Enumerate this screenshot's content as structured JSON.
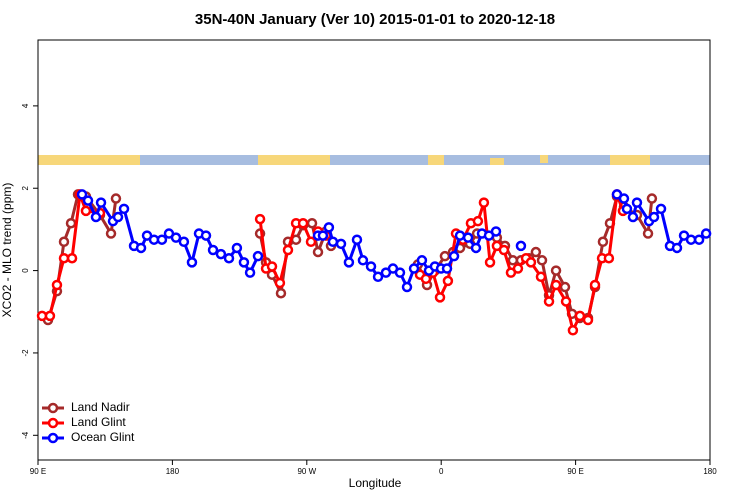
{
  "chart_data": {
    "type": "line",
    "title": "35N-40N January (Ver 10)   2015-01-01 to 2020-12-18",
    "x_label": "Longitude",
    "y_label": "XCO2 - MLO trend (ppm)",
    "xlim": [
      90,
      540
    ],
    "xticks": [
      {
        "value": 90,
        "label": "90 E"
      },
      180,
      {
        "value": 270,
        "label": "90 W"
      },
      {
        "value": 360,
        "label": "0"
      },
      {
        "value": 450,
        "label": "90 E"
      },
      {
        "value": 540,
        "label": "180"
      }
    ],
    "ylim": [
      -4.6,
      5.6
    ],
    "yticks": [
      -4,
      -2,
      0,
      2,
      4
    ],
    "legend": "bottom-left",
    "series": [
      {
        "name": "Land Nadir",
        "color": "#a52a2a",
        "x": [
          96.7,
          102.7,
          107.4,
          112.1,
          116.8,
          122.1,
          131.5,
          138.9,
          142.2,
          null,
          238.7,
          242.7,
          246.7,
          252.7,
          257.4,
          262.8,
          267.5,
          273.5,
          277.5,
          282.8,
          286.2,
          null,
          344.4,
          350.5,
          355.8,
          362.5,
          367.9,
          372.6,
          379.3,
          384,
          397.3,
          402.7,
          408,
          413.4,
          418.8,
          423.4,
          427.5,
          432.2,
          436.9,
          442.9,
          447.6,
          452.9,
          458.3,
          463,
          468.3,
          473,
          477.7,
          482.4,
          491.1,
          498.5,
          501.1
        ],
        "values": [
          -1.2,
          -0.5,
          0.7,
          1.15,
          1.85,
          1.8,
          1.35,
          0.9,
          1.75,
          null,
          0.9,
          0.2,
          -0.1,
          -0.55,
          0.7,
          0.75,
          1.1,
          1.15,
          0.45,
          0.95,
          0.6,
          null,
          0.15,
          -0.35,
          0.0,
          0.35,
          0.45,
          0.55,
          0.65,
          0.9,
          0.8,
          0.6,
          0.25,
          0.25,
          0.3,
          0.45,
          0.25,
          -0.6,
          0.0,
          -0.4,
          -1.05,
          -1.15,
          -1.15,
          -0.4,
          0.7,
          1.15,
          1.8,
          1.55,
          1.35,
          0.9,
          1.75
        ]
      },
      {
        "name": "Land Glint",
        "color": "#ff0000",
        "x": [
          92.7,
          98,
          102.7,
          107.4,
          112.8,
          118.1,
          122.1,
          131.5,
          null,
          238.7,
          242.7,
          246.7,
          252,
          257.4,
          262.8,
          267.5,
          272.8,
          277.5,
          282.8,
          null,
          345.8,
          349.8,
          354.5,
          359.2,
          364.5,
          369.9,
          374.6,
          379.9,
          384.6,
          388.6,
          392.7,
          397.3,
          402,
          406.7,
          411.4,
          416.8,
          420.1,
          426.8,
          432.2,
          436.9,
          443.6,
          448.2,
          452.9,
          458.3,
          463,
          467.7,
          472.3,
          477.7,
          481.7
        ],
        "values": [
          -1.1,
          -1.1,
          -0.35,
          0.3,
          0.3,
          1.85,
          1.45,
          1.4,
          null,
          1.25,
          0.05,
          0.1,
          -0.3,
          0.5,
          1.15,
          1.15,
          0.7,
          0.95,
          0.85,
          null,
          -0.1,
          -0.2,
          -0.05,
          -0.65,
          -0.25,
          0.9,
          0.75,
          1.15,
          1.2,
          1.65,
          0.2,
          0.6,
          0.5,
          -0.05,
          0.05,
          0.3,
          0.2,
          -0.15,
          -0.75,
          -0.35,
          -0.75,
          -1.45,
          -1.1,
          -1.2,
          -0.35,
          0.3,
          0.3,
          1.85,
          1.45
        ]
      },
      {
        "name": "Ocean Glint",
        "color": "#0000ff",
        "x": [
          119.5,
          123.5,
          128.8,
          132.2,
          140.2,
          143.6,
          147.6,
          154.3,
          159,
          163,
          167.7,
          173,
          177.7,
          182.4,
          187.7,
          193.1,
          197.8,
          202.5,
          207.2,
          212.5,
          217.9,
          223.2,
          227.9,
          232,
          237.3,
          null,
          277.5,
          280.8,
          284.8,
          287.5,
          292.9,
          298.2,
          303.6,
          307.6,
          313,
          317.7,
          323,
          327.7,
          332.4,
          337.1,
          341.8,
          347.1,
          351.8,
          355.8,
          359.9,
          363.9,
          368.6,
          372.6,
          378,
          383.3,
          387.3,
          392,
          396.7,
          null,
          413.4,
          null,
          477.7,
          482.4,
          484.4,
          488.4,
          491.1,
          499.2,
          502.5,
          507.2,
          513.2,
          517.9,
          522.6,
          527.3,
          532.7,
          537.4
        ],
        "values": [
          1.85,
          1.7,
          1.3,
          1.65,
          1.2,
          1.3,
          1.5,
          0.6,
          0.55,
          0.85,
          0.75,
          0.75,
          0.9,
          0.8,
          0.7,
          0.2,
          0.9,
          0.85,
          0.5,
          0.4,
          0.3,
          0.55,
          0.2,
          -0.05,
          0.35,
          null,
          0.85,
          0.85,
          1.05,
          0.7,
          0.65,
          0.2,
          0.75,
          0.25,
          0.1,
          -0.15,
          -0.05,
          0.05,
          -0.05,
          -0.4,
          0.05,
          0.25,
          0.0,
          0.1,
          0.05,
          0.05,
          0.35,
          0.85,
          0.8,
          0.55,
          0.9,
          0.85,
          0.95,
          null,
          0.6,
          null,
          1.85,
          1.75,
          1.5,
          1.3,
          1.65,
          1.2,
          1.3,
          1.5,
          0.6,
          0.55,
          0.85,
          0.75,
          0.75,
          0.9
        ]
      }
    ]
  }
}
